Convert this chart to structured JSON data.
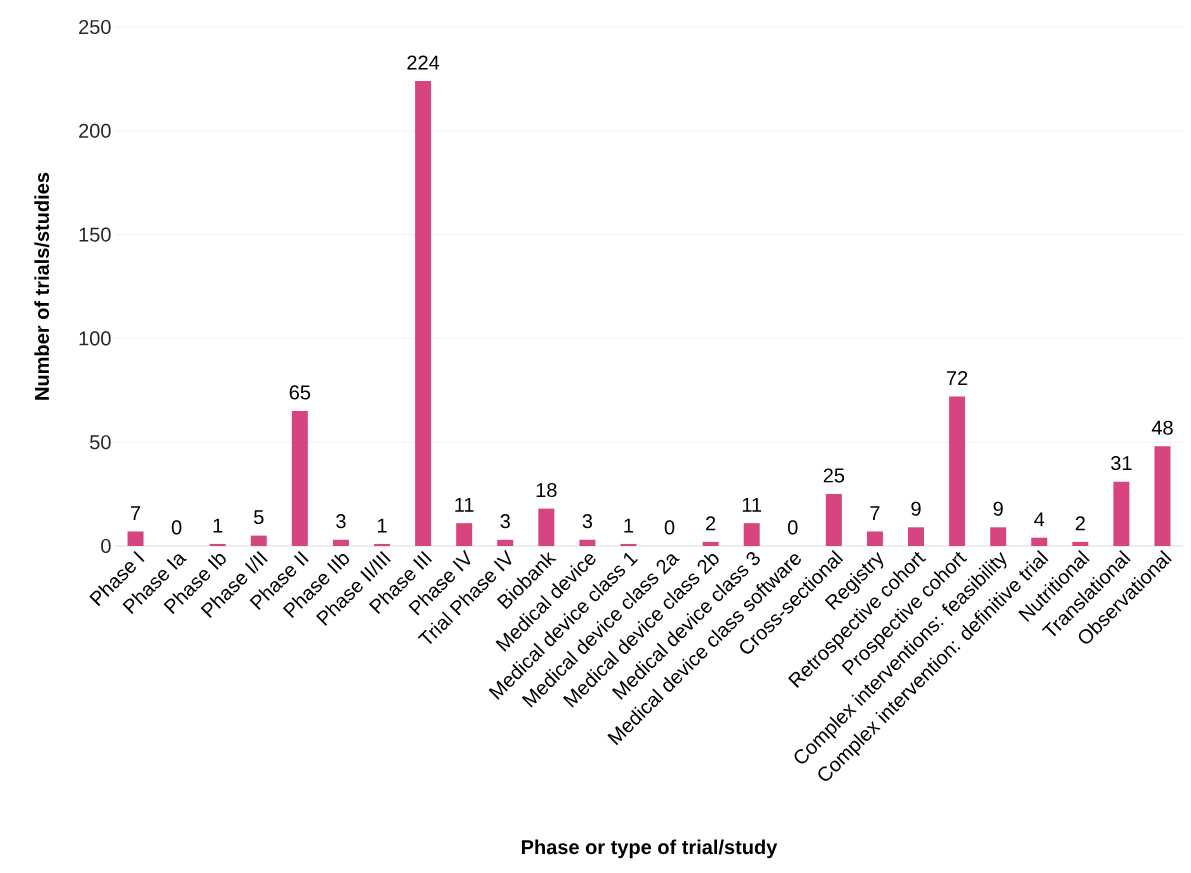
{
  "chart_data": {
    "type": "bar",
    "categories": [
      "Phase I",
      "Phase Ia",
      "Phase Ib",
      "Phase I/II",
      "Phase II",
      "Phase IIb",
      "Phase II/III",
      "Phase III",
      "Phase IV",
      "Trial Phase IV",
      "Biobank",
      "Medical device",
      "Medical device class 1",
      "Medical device class 2a",
      "Medical device class 2b",
      "Medical device class 3",
      "Medical device class software",
      "Cross-sectional",
      "Registry",
      "Retrospective cohort",
      "Prospective cohort",
      "Complex interventions: feasibility",
      "Complex intervention: definitive trial",
      "Nutritional",
      "Translational",
      "Observational"
    ],
    "values": [
      7,
      0,
      1,
      5,
      65,
      3,
      1,
      224,
      11,
      3,
      18,
      3,
      1,
      0,
      2,
      11,
      0,
      25,
      7,
      9,
      72,
      9,
      4,
      2,
      31,
      48
    ],
    "color": "#d6457f",
    "xlabel": "Phase or type of trial/study",
    "ylabel": "Number of trials/studies",
    "ylim": [
      0,
      250
    ],
    "yticks": [
      0,
      50,
      100,
      150,
      200,
      250
    ],
    "grid": "y",
    "data_labels": true
  }
}
